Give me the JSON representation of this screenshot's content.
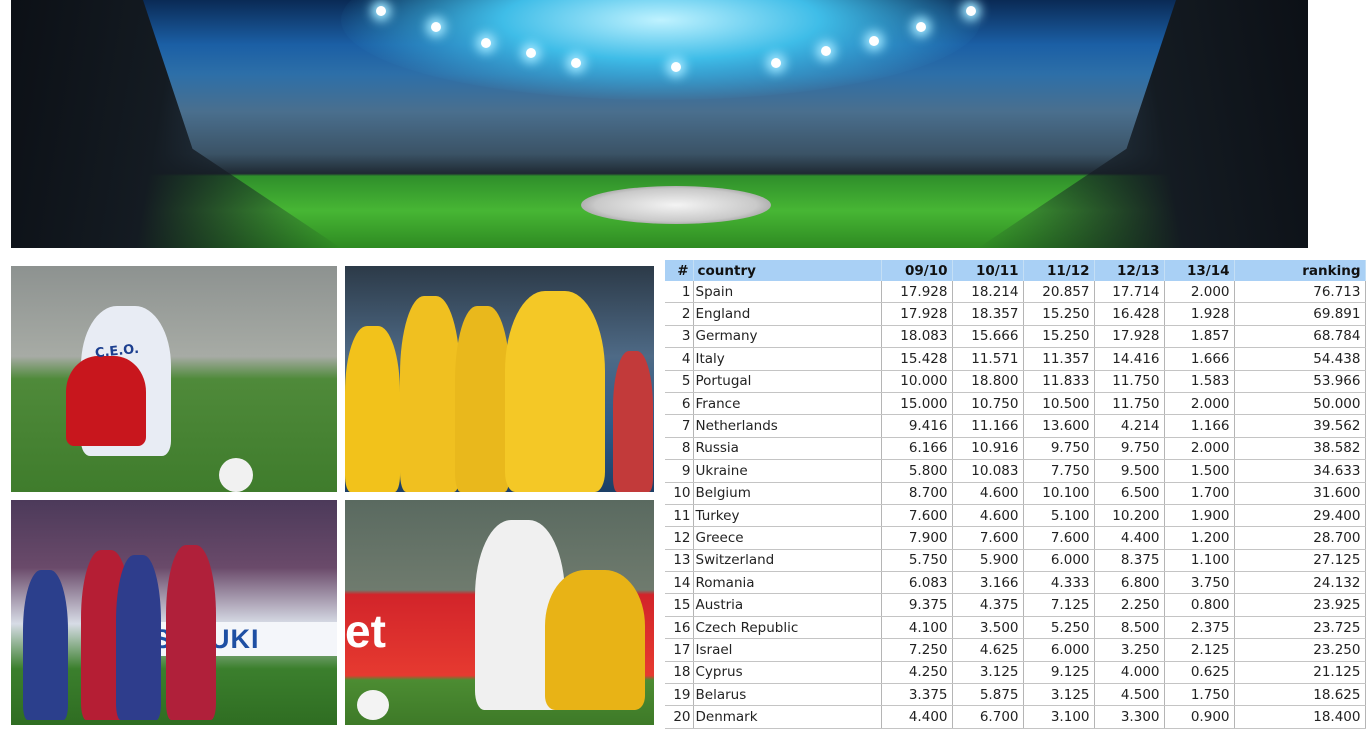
{
  "table": {
    "headers": [
      "#",
      "country",
      "09/10",
      "10/11",
      "11/12",
      "12/13",
      "13/14",
      "ranking"
    ],
    "rows": [
      [
        "1",
        "Spain",
        "17.928",
        "18.214",
        "20.857",
        "17.714",
        "2.000",
        "76.713"
      ],
      [
        "2",
        "England",
        "17.928",
        "18.357",
        "15.250",
        "16.428",
        "1.928",
        "69.891"
      ],
      [
        "3",
        "Germany",
        "18.083",
        "15.666",
        "15.250",
        "17.928",
        "1.857",
        "68.784"
      ],
      [
        "4",
        "Italy",
        "15.428",
        "11.571",
        "11.357",
        "14.416",
        "1.666",
        "54.438"
      ],
      [
        "5",
        "Portugal",
        "10.000",
        "18.800",
        "11.833",
        "11.750",
        "1.583",
        "53.966"
      ],
      [
        "6",
        "France",
        "15.000",
        "10.750",
        "10.500",
        "11.750",
        "2.000",
        "50.000"
      ],
      [
        "7",
        "Netherlands",
        "9.416",
        "11.166",
        "13.600",
        "4.214",
        "1.166",
        "39.562"
      ],
      [
        "8",
        "Russia",
        "6.166",
        "10.916",
        "9.750",
        "9.750",
        "2.000",
        "38.582"
      ],
      [
        "9",
        "Ukraine",
        "5.800",
        "10.083",
        "7.750",
        "9.500",
        "1.500",
        "34.633"
      ],
      [
        "10",
        "Belgium",
        "8.700",
        "4.600",
        "10.100",
        "6.500",
        "1.700",
        "31.600"
      ],
      [
        "11",
        "Turkey",
        "7.600",
        "4.600",
        "5.100",
        "10.200",
        "1.900",
        "29.400"
      ],
      [
        "12",
        "Greece",
        "7.900",
        "7.600",
        "7.600",
        "4.400",
        "1.200",
        "28.700"
      ],
      [
        "13",
        "Switzerland",
        "5.750",
        "5.900",
        "6.000",
        "8.375",
        "1.100",
        "27.125"
      ],
      [
        "14",
        "Romania",
        "6.083",
        "3.166",
        "4.333",
        "6.800",
        "3.750",
        "24.132"
      ],
      [
        "15",
        "Austria",
        "9.375",
        "4.375",
        "7.125",
        "2.250",
        "0.800",
        "23.925"
      ],
      [
        "16",
        "Czech Republic",
        "4.100",
        "3.500",
        "5.250",
        "8.500",
        "2.375",
        "23.725"
      ],
      [
        "17",
        "Israel",
        "7.250",
        "4.625",
        "6.000",
        "3.250",
        "2.125",
        "23.250"
      ],
      [
        "18",
        "Cyprus",
        "4.250",
        "3.125",
        "9.125",
        "4.000",
        "0.625",
        "21.125"
      ],
      [
        "19",
        "Belarus",
        "3.375",
        "5.875",
        "3.125",
        "4.500",
        "1.750",
        "18.625"
      ],
      [
        "20",
        "Denmark",
        "4.400",
        "6.700",
        "3.100",
        "3.300",
        "0.900",
        "18.400"
      ]
    ]
  },
  "colors": {
    "header_bg": "#a9d0f5",
    "grid": "#b5b5b5"
  },
  "photo_lettering": [
    "C.E.O.",
    "SUZUKI",
    "et"
  ]
}
